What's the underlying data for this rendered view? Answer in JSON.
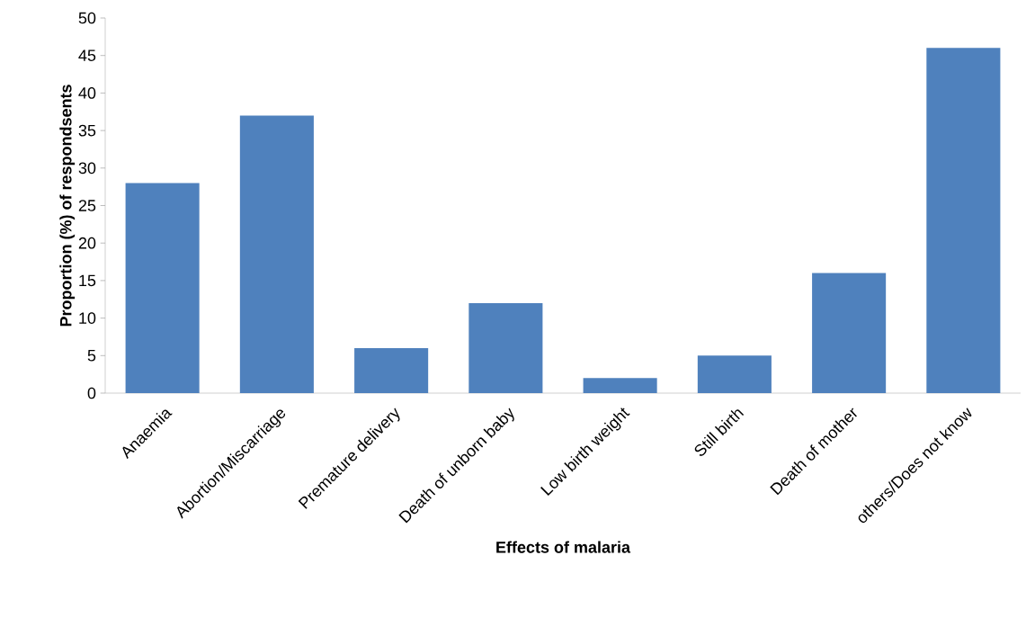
{
  "chart_data": {
    "type": "bar",
    "xlabel": "Effects of malaria",
    "ylabel": "Proportion (%) of respondsents",
    "categories": [
      "Anaemia",
      "Abortion/Miscarriage",
      "Premature delivery",
      "Death of unborn baby",
      "Low birth weight",
      "Still birth",
      "Death  of mother",
      "others/Does not know"
    ],
    "values": [
      28,
      37,
      6,
      12,
      2,
      5,
      16,
      46
    ],
    "color": "#4f81bd",
    "ylim": [
      0,
      50
    ],
    "yticks": [
      0,
      5,
      10,
      15,
      20,
      25,
      30,
      35,
      40,
      45,
      50
    ]
  }
}
